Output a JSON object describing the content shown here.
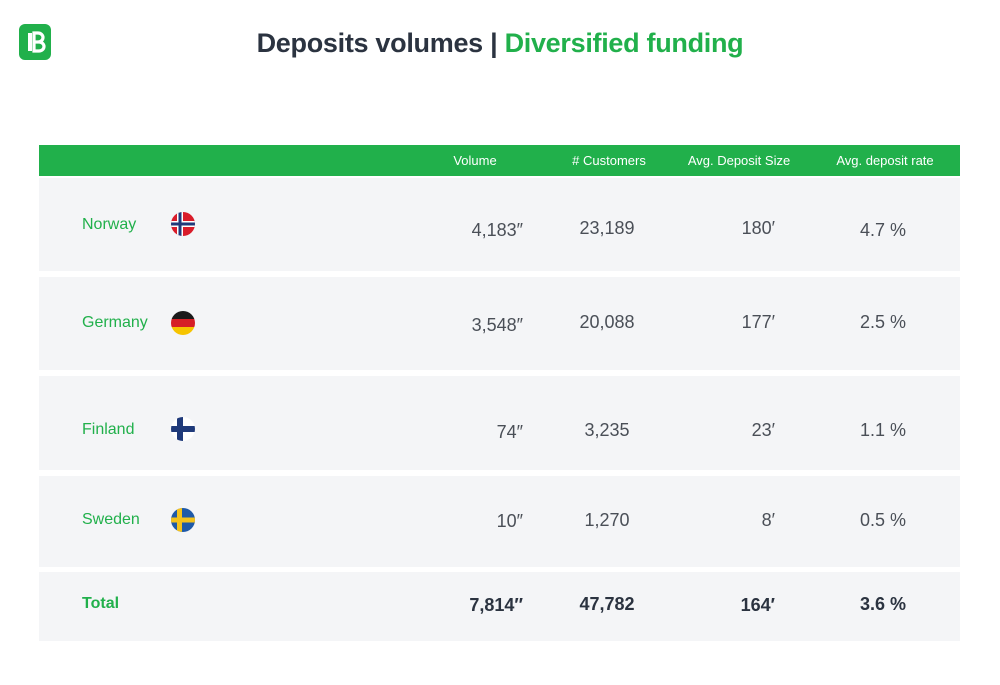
{
  "header": {
    "title_main": "Deposits volumes",
    "title_sep": "|",
    "title_accent": "Diversified funding",
    "logo_icon": "bank-logo-icon"
  },
  "colors": {
    "brand_green": "#21b04b",
    "text_dark": "#2b3340",
    "row_bg": "#f4f5f7"
  },
  "table": {
    "columns": [
      "Volume",
      "# Customers",
      "Avg. Deposit Size",
      "Avg. deposit rate"
    ],
    "rows": [
      {
        "country": "Norway",
        "flag": "norway-flag-icon",
        "volume": "4,183″",
        "customers": "23,189",
        "avg_size": "180′",
        "avg_rate": "4.7 %"
      },
      {
        "country": "Germany",
        "flag": "germany-flag-icon",
        "volume": "3,548″",
        "customers": "20,088",
        "avg_size": "177′",
        "avg_rate": "2.5 %"
      },
      {
        "country": "Finland",
        "flag": "finland-flag-icon",
        "volume": "74″",
        "customers": "3,235",
        "avg_size": "23′",
        "avg_rate": "1.1 %"
      },
      {
        "country": "Sweden",
        "flag": "sweden-flag-icon",
        "volume": "10″",
        "customers": "1,270",
        "avg_size": "8′",
        "avg_rate": "0.5 %"
      }
    ],
    "total": {
      "label": "Total",
      "volume": "7,814″",
      "customers": "47,782",
      "avg_size": "164′",
      "avg_rate": "3.6 %"
    }
  }
}
